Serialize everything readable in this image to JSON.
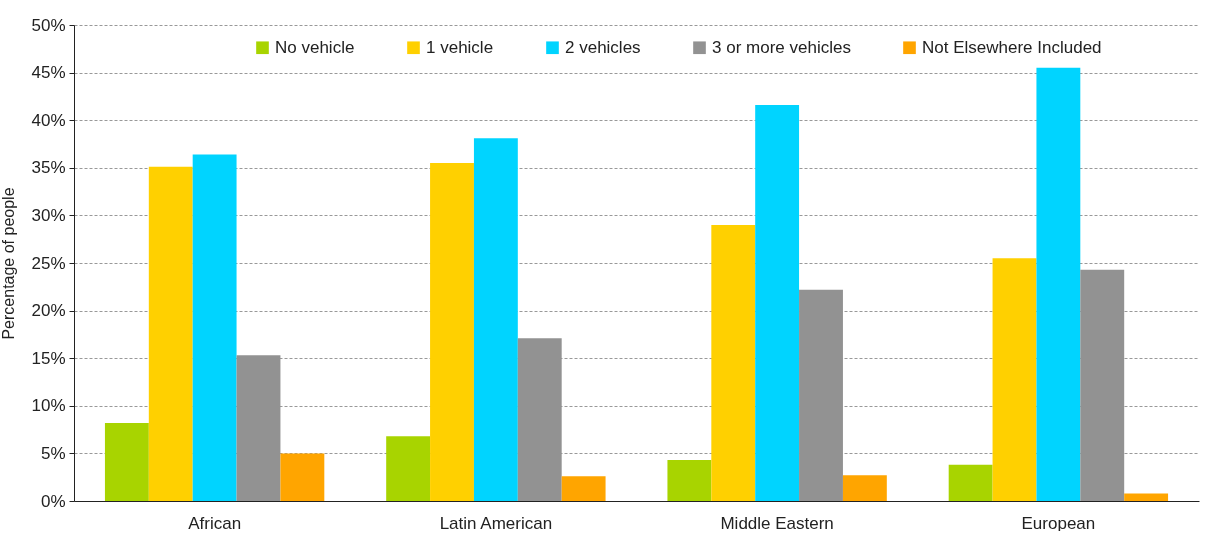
{
  "chart_data": {
    "type": "bar",
    "ylabel": "Percentage of people",
    "categories": [
      "African",
      "Latin American",
      "Middle Eastern",
      "European"
    ],
    "series": [
      {
        "name": "No vehicle",
        "color": "#a8d400",
        "values": [
          8.2,
          6.8,
          4.3,
          3.8
        ]
      },
      {
        "name": "1 vehicle",
        "color": "#ffd000",
        "values": [
          35.1,
          35.5,
          29.0,
          25.5
        ]
      },
      {
        "name": "2 vehicles",
        "color": "#00d4ff",
        "values": [
          36.4,
          38.1,
          41.6,
          45.5
        ]
      },
      {
        "name": "3 or more vehicles",
        "color": "#929292",
        "values": [
          15.3,
          17.1,
          22.2,
          24.3
        ]
      },
      {
        "name": "Not Elsewhere Included",
        "color": "#ffa500",
        "values": [
          5.0,
          2.6,
          2.7,
          0.8
        ]
      }
    ],
    "ylim": [
      0,
      50
    ],
    "yticks": [
      {
        "value": 0,
        "label": "0%"
      },
      {
        "value": 5,
        "label": "5%"
      },
      {
        "value": 10,
        "label": "10%"
      },
      {
        "value": 15,
        "label": "15%"
      },
      {
        "value": 20,
        "label": "20%"
      },
      {
        "value": 25,
        "label": "25%"
      },
      {
        "value": 30,
        "label": "30%"
      },
      {
        "value": 35,
        "label": "35%"
      },
      {
        "value": 40,
        "label": "40%"
      },
      {
        "value": 45,
        "label": "45%"
      },
      {
        "value": 50,
        "label": "50%"
      }
    ],
    "grid": "y",
    "legend": "top"
  }
}
